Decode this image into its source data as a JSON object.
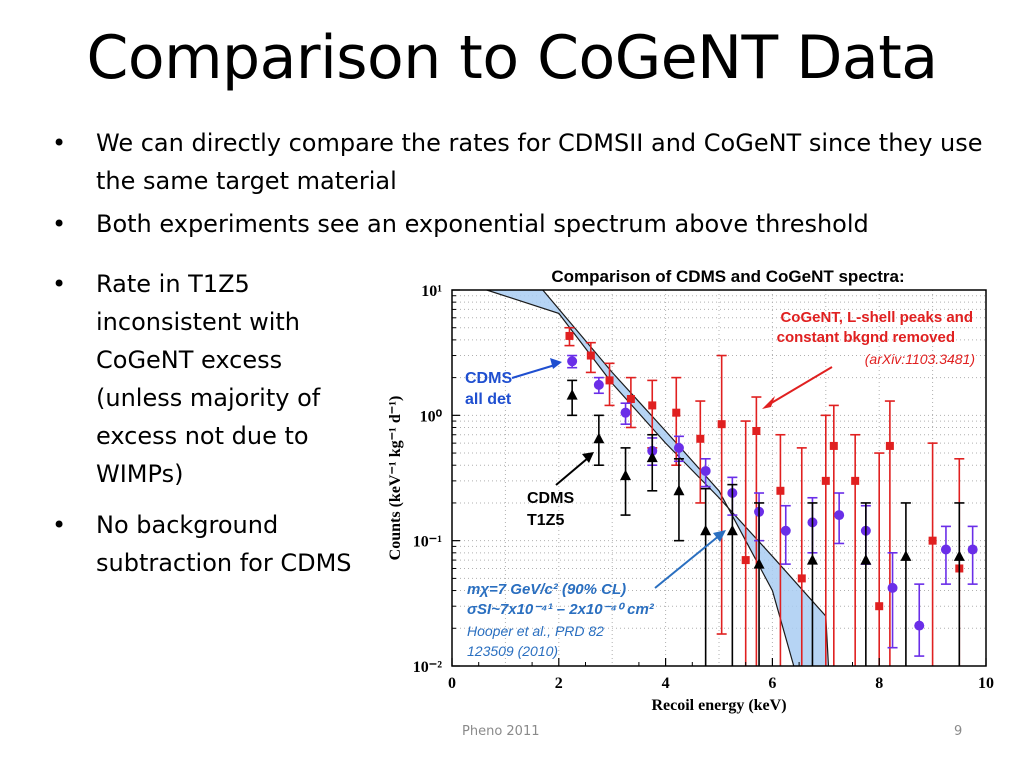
{
  "slide": {
    "title": "Comparison to CoGeNT Data",
    "bullets": [
      "We can directly compare the rates for CDMSII and CoGeNT since they use the same target material",
      "Both experiments see an exponential spectrum above threshold",
      "Rate in T1Z5 inconsistent with CoGeNT excess (unless majority of excess not due to WIMPs)",
      "No background subtraction for CDMS"
    ],
    "footer": "Pheno 2011",
    "page_number": "9"
  },
  "chart_data": {
    "type": "scatter",
    "title": "Comparison of CDMS and CoGeNT spectra:",
    "xlabel": "Recoil energy (keV)",
    "ylabel": "Counts (keV⁻¹ kg⁻¹ d⁻¹)",
    "xlim": [
      0,
      10
    ],
    "ylim": [
      0.01,
      10
    ],
    "yscale": "log",
    "grid": true,
    "x_ticks": [
      "0",
      "2",
      "4",
      "6",
      "8",
      "10"
    ],
    "y_ticks": [
      "10¹",
      "10⁰",
      "10⁻¹",
      "10⁻²"
    ],
    "colors": {
      "cogent": "#e02020",
      "cdms_all": "#6a2ee8",
      "cdms_t1z5": "#000000",
      "band_fill": "#a9cdf2",
      "band_edge": "#1a1a1a",
      "cogent_note": "#e02020",
      "band_text": "#2a6fc0",
      "cdms_label": "#1f4fd0"
    },
    "series": [
      {
        "name": "CoGeNT, L-shell peaks and constant bkgnd removed",
        "marker": "square",
        "points": [
          {
            "x": 2.2,
            "y": 4.3,
            "lo": 3.6,
            "hi": 5.0
          },
          {
            "x": 2.6,
            "y": 3.0,
            "lo": 2.2,
            "hi": 3.8
          },
          {
            "x": 2.95,
            "y": 1.9,
            "lo": 1.2,
            "hi": 2.6
          },
          {
            "x": 3.35,
            "y": 1.35,
            "lo": 0.8,
            "hi": 2.0
          },
          {
            "x": 3.75,
            "y": 1.2,
            "lo": 0.55,
            "hi": 1.9
          },
          {
            "x": 4.2,
            "y": 1.05,
            "lo": 0.4,
            "hi": 2.0
          },
          {
            "x": 4.65,
            "y": 0.65,
            "lo": 0.2,
            "hi": 1.3
          },
          {
            "x": 5.05,
            "y": 0.85,
            "lo": 0.018,
            "hi": 3.0
          },
          {
            "x": 5.5,
            "y": 0.07,
            "lo": 0.01,
            "hi": 0.9
          },
          {
            "x": 5.7,
            "y": 0.75,
            "lo": 0.01,
            "hi": 1.4
          },
          {
            "x": 6.15,
            "y": 0.25,
            "lo": 0.01,
            "hi": 0.7
          },
          {
            "x": 6.55,
            "y": 0.05,
            "lo": 0.01,
            "hi": 0.55
          },
          {
            "x": 7.0,
            "y": 0.3,
            "lo": 0.01,
            "hi": 1.0
          },
          {
            "x": 7.15,
            "y": 0.57,
            "lo": 0.01,
            "hi": 1.2
          },
          {
            "x": 7.55,
            "y": 0.3,
            "lo": 0.01,
            "hi": 0.7
          },
          {
            "x": 8.0,
            "y": 0.03,
            "lo": 0.01,
            "hi": 0.5
          },
          {
            "x": 8.2,
            "y": 0.57,
            "lo": 0.01,
            "hi": 1.3
          },
          {
            "x": 9.0,
            "y": 0.1,
            "lo": 0.01,
            "hi": 0.6
          },
          {
            "x": 9.5,
            "y": 0.06,
            "lo": 0.01,
            "hi": 0.45
          }
        ]
      },
      {
        "name": "CDMS all det",
        "marker": "circle",
        "points": [
          {
            "x": 2.25,
            "y": 2.7,
            "lo": 2.4,
            "hi": 3.0
          },
          {
            "x": 2.75,
            "y": 1.75,
            "lo": 1.5,
            "hi": 2.0
          },
          {
            "x": 3.25,
            "y": 1.05,
            "lo": 0.85,
            "hi": 1.25
          },
          {
            "x": 3.75,
            "y": 0.52,
            "lo": 0.4,
            "hi": 0.66
          },
          {
            "x": 4.25,
            "y": 0.55,
            "lo": 0.43,
            "hi": 0.68
          },
          {
            "x": 4.75,
            "y": 0.36,
            "lo": 0.27,
            "hi": 0.45
          },
          {
            "x": 5.25,
            "y": 0.24,
            "lo": 0.16,
            "hi": 0.32
          },
          {
            "x": 5.75,
            "y": 0.17,
            "lo": 0.1,
            "hi": 0.24
          },
          {
            "x": 6.25,
            "y": 0.12,
            "lo": 0.065,
            "hi": 0.19
          },
          {
            "x": 6.75,
            "y": 0.14,
            "lo": 0.08,
            "hi": 0.22
          },
          {
            "x": 7.25,
            "y": 0.16,
            "lo": 0.095,
            "hi": 0.24
          },
          {
            "x": 7.75,
            "y": 0.12,
            "lo": 0.065,
            "hi": 0.19
          },
          {
            "x": 8.25,
            "y": 0.042,
            "lo": 0.014,
            "hi": 0.08
          },
          {
            "x": 8.75,
            "y": 0.021,
            "lo": 0.012,
            "hi": 0.045
          },
          {
            "x": 9.25,
            "y": 0.085,
            "lo": 0.045,
            "hi": 0.13
          },
          {
            "x": 9.75,
            "y": 0.085,
            "lo": 0.045,
            "hi": 0.13
          }
        ]
      },
      {
        "name": "CDMS T1Z5",
        "marker": "triangle",
        "points": [
          {
            "x": 2.25,
            "y": 1.45,
            "lo": 1.0,
            "hi": 1.9
          },
          {
            "x": 2.75,
            "y": 0.65,
            "lo": 0.4,
            "hi": 1.0
          },
          {
            "x": 3.25,
            "y": 0.33,
            "lo": 0.16,
            "hi": 0.55
          },
          {
            "x": 3.75,
            "y": 0.46,
            "lo": 0.25,
            "hi": 0.7
          },
          {
            "x": 4.25,
            "y": 0.25,
            "lo": 0.1,
            "hi": 0.45
          },
          {
            "x": 4.75,
            "y": 0.12,
            "lo": 0.01,
            "hi": 0.26
          },
          {
            "x": 5.25,
            "y": 0.12,
            "lo": 0.01,
            "hi": 0.28
          },
          {
            "x": 5.75,
            "y": 0.065,
            "lo": 0.01,
            "hi": 0.2
          },
          {
            "x": 6.75,
            "y": 0.07,
            "lo": 0.01,
            "hi": 0.2
          },
          {
            "x": 7.75,
            "y": 0.07,
            "lo": 0.01,
            "hi": 0.2
          },
          {
            "x": 8.5,
            "y": 0.075,
            "lo": 0.01,
            "hi": 0.2
          },
          {
            "x": 9.5,
            "y": 0.075,
            "lo": 0.01,
            "hi": 0.2
          }
        ]
      }
    ],
    "band": {
      "upper": [
        [
          0.65,
          10
        ],
        [
          2.0,
          6.5
        ],
        [
          3.0,
          1.8
        ],
        [
          4.0,
          0.6
        ],
        [
          5.0,
          0.22
        ],
        [
          6.0,
          0.075
        ],
        [
          7.0,
          0.025
        ],
        [
          7.05,
          0.01
        ]
      ],
      "lower": [
        [
          1.7,
          10
        ],
        [
          3.0,
          2.2
        ],
        [
          4.0,
          0.75
        ],
        [
          5.0,
          0.25
        ],
        [
          5.5,
          0.1
        ],
        [
          6.0,
          0.04
        ],
        [
          6.4,
          0.01
        ]
      ]
    },
    "annotations": {
      "cogent_line1": "CoGeNT, L-shell peaks and",
      "cogent_line2": "constant bkgnd removed",
      "cogent_ref": "(arXiv:1103.3481)",
      "cdms_all_line1": "CDMS",
      "cdms_all_line2": "all det",
      "cdms_t1z5_line1": "CDMS",
      "cdms_t1z5_line2": "T1Z5",
      "band_line1": "mχ=7 GeV/c² (90% CL)",
      "band_line2": "σSI~7x10⁻⁴¹ – 2x10⁻⁴⁰ cm²",
      "band_ref1": "Hooper et al., PRD 82",
      "band_ref2": "123509 (2010)"
    }
  }
}
